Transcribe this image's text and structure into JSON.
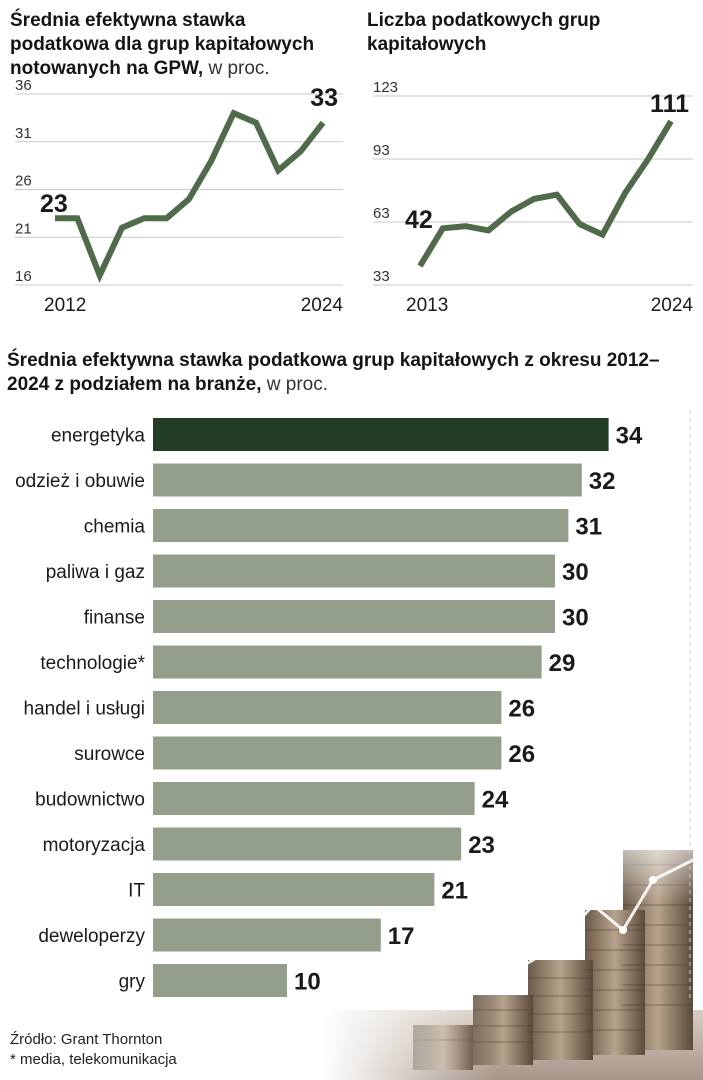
{
  "footer": {
    "source": "Źródło: Grant Thornton",
    "footnote": "* media, telekomunikacja"
  },
  "colors": {
    "line": "#4f6b4a",
    "bar": "#939f8a",
    "bar_highlight": "#223c25",
    "grid": "#c9c9c9",
    "text": "#1a1a1a"
  },
  "chart_data": [
    {
      "type": "line",
      "title": "Średnia efektywna stawka podatkowa dla grup kapitałowych notowanych na GPW,",
      "title_unit": "w proc.",
      "x": [
        2012,
        2013,
        2014,
        2015,
        2016,
        2017,
        2018,
        2019,
        2020,
        2021,
        2022,
        2023,
        2024
      ],
      "values": [
        23,
        23,
        17,
        22,
        23,
        23,
        25,
        29,
        34,
        33,
        28,
        30,
        33
      ],
      "ylim": [
        16,
        36
      ],
      "yticks": [
        "36",
        "31",
        "26",
        "21",
        "16"
      ],
      "xtick_labels": [
        "2012",
        "2024"
      ],
      "annotations": {
        "start": "23",
        "end": "33"
      },
      "grid": true
    },
    {
      "type": "line",
      "title": "Liczba podatkowych grup kapitałowych",
      "x": [
        2013,
        2014,
        2015,
        2016,
        2017,
        2018,
        2019,
        2020,
        2021,
        2022,
        2023,
        2024
      ],
      "values": [
        42,
        60,
        61,
        59,
        68,
        74,
        76,
        62,
        57,
        77,
        93,
        111
      ],
      "ylim": [
        33,
        123
      ],
      "yticks": [
        "123",
        "93",
        "63",
        "33"
      ],
      "xtick_labels": [
        "2013",
        "2024"
      ],
      "annotations": {
        "start": "42",
        "end": "111"
      },
      "grid": true
    },
    {
      "type": "bar",
      "orientation": "horizontal",
      "title": "Średnia efektywna stawka podatkowa grup kapitałowych z okresu 2012–2024 z podziałem na branże,",
      "title_unit": "w proc.",
      "categories": [
        "energetyka",
        "odzież i obuwie",
        "chemia",
        "paliwa i gaz",
        "finanse",
        "technologie*",
        "handel i usługi",
        "surowce",
        "budownictwo",
        "motoryzacja",
        "IT",
        "deweloperzy",
        "gry"
      ],
      "values": [
        34,
        32,
        31,
        30,
        30,
        29,
        26,
        26,
        24,
        23,
        21,
        17,
        10
      ],
      "value_labels": [
        "34",
        "32",
        "31",
        "30",
        "30",
        "29",
        "26",
        "26",
        "24",
        "23",
        "21",
        "17",
        "10"
      ],
      "highlight": "energetyka",
      "xlim": [
        0,
        35
      ]
    }
  ]
}
